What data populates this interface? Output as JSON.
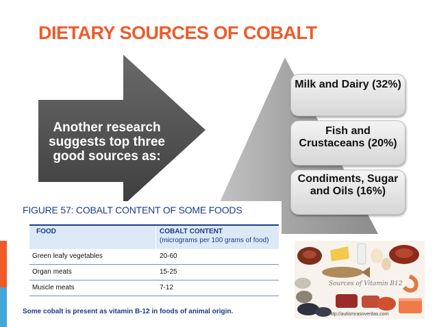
{
  "slide": {
    "title": "DIETARY SOURCES OF COBALT",
    "arrow_text": "Another research suggests top three good sources as:"
  },
  "pyramid": {
    "items": [
      {
        "label": "Milk and Dairy (32%)"
      },
      {
        "label": "Fish and Crustaceans (20%)"
      },
      {
        "label": "Condiments, Sugar and Oils (16%)"
      }
    ]
  },
  "figure": {
    "title": "FIGURE 57: COBALT CONTENT OF SOME FOODS",
    "table": {
      "headers": [
        "FOOD",
        "COBALT CONTENT"
      ],
      "header_sub": "(micrograms per 100 grams of food)",
      "rows": [
        [
          "Green leafy vegetables",
          "20-60"
        ],
        [
          "Organ meats",
          "15-25"
        ],
        [
          "Muscle meats",
          "7-12"
        ]
      ]
    },
    "note": "Some cobalt is present as vitamin B-12 in foods of animal origin."
  },
  "photo": {
    "caption": "Sources of Vitamin B12",
    "url": "http://autismrasoveritas.com"
  },
  "colors": {
    "title": "#f05a28",
    "arrow": "#555555",
    "pyramid": "#a9a9a9",
    "table_header_bg": "#dbe9f7",
    "table_text": "#1a3a8a",
    "accent_blue": "#41a6d8"
  }
}
